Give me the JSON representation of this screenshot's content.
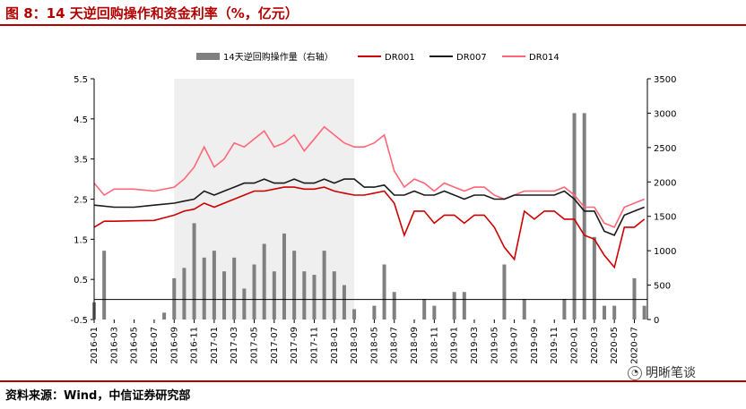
{
  "header": {
    "title": "图 8：14 天逆回购操作和资金利率（%，亿元）"
  },
  "footer": {
    "source": "资料来源：Wind，中信证券研究部",
    "watermark": "明晰笔谈"
  },
  "colors": {
    "accent": "#b30000",
    "bars": "#808080",
    "dr001": "#cc0000",
    "dr007": "#1a1a1a",
    "dr014": "#ff6677",
    "shade": "#efefef"
  },
  "chart_data": {
    "type": "line",
    "legend_position": "top",
    "x_ticks": [
      "2016-01",
      "2016-03",
      "2016-05",
      "2016-07",
      "2016-09",
      "2016-11",
      "2017-01",
      "2017-03",
      "2017-05",
      "2017-07",
      "2017-09",
      "2017-11",
      "2018-01",
      "2018-03",
      "2018-05",
      "2018-07",
      "2018-09",
      "2018-11",
      "2019-01",
      "2019-03",
      "2019-05",
      "2019-07",
      "2019-09",
      "2019-11",
      "2020-01",
      "2020-03",
      "2020-05",
      "2020-07"
    ],
    "y_left": {
      "ticks": [
        "5.5",
        "4.5",
        "3.5",
        "2.5",
        "1.5",
        "0.5",
        "-0.5"
      ],
      "lim": [
        -0.5,
        5.5
      ]
    },
    "y_right": {
      "ticks": [
        "3500",
        "3000",
        "2500",
        "2000",
        "1500",
        "1000",
        "500",
        "0"
      ],
      "lim": [
        0,
        3500
      ]
    },
    "shaded_range": [
      "2016-09",
      "2018-03"
    ],
    "series": [
      {
        "name": "14天逆回购操作量（右轴）",
        "kind": "bar",
        "axis": "right",
        "points": [
          [
            "2016-01",
            250
          ],
          [
            "2016-02",
            1000
          ],
          [
            "2016-08",
            100
          ],
          [
            "2016-09",
            600
          ],
          [
            "2016-10",
            750
          ],
          [
            "2016-11",
            1400
          ],
          [
            "2016-12",
            900
          ],
          [
            "2017-01",
            1000
          ],
          [
            "2017-02",
            700
          ],
          [
            "2017-03",
            900
          ],
          [
            "2017-04",
            450
          ],
          [
            "2017-05",
            800
          ],
          [
            "2017-06",
            1100
          ],
          [
            "2017-07",
            700
          ],
          [
            "2017-08",
            1250
          ],
          [
            "2017-09",
            1000
          ],
          [
            "2017-10",
            700
          ],
          [
            "2017-11",
            650
          ],
          [
            "2017-12",
            1000
          ],
          [
            "2018-01",
            700
          ],
          [
            "2018-02",
            500
          ],
          [
            "2018-03",
            150
          ],
          [
            "2018-05",
            200
          ],
          [
            "2018-06",
            800
          ],
          [
            "2018-07",
            400
          ],
          [
            "2018-10",
            300
          ],
          [
            "2018-11",
            200
          ],
          [
            "2019-01",
            400
          ],
          [
            "2019-02",
            400
          ],
          [
            "2019-06",
            800
          ],
          [
            "2019-08",
            300
          ],
          [
            "2019-12",
            300
          ],
          [
            "2020-01",
            3000
          ],
          [
            "2020-02",
            3000
          ],
          [
            "2020-03",
            1200
          ],
          [
            "2020-04",
            200
          ],
          [
            "2020-05",
            200
          ],
          [
            "2020-07",
            600
          ],
          [
            "2020-08",
            200
          ]
        ]
      },
      {
        "name": "DR001",
        "kind": "line",
        "axis": "left",
        "points": [
          [
            "2016-01",
            1.8
          ],
          [
            "2016-02",
            1.95
          ],
          [
            "2016-03",
            1.95
          ],
          [
            "2016-05",
            1.96
          ],
          [
            "2016-07",
            1.97
          ],
          [
            "2016-09",
            2.1
          ],
          [
            "2016-10",
            2.2
          ],
          [
            "2016-11",
            2.25
          ],
          [
            "2016-12",
            2.4
          ],
          [
            "2017-01",
            2.3
          ],
          [
            "2017-02",
            2.4
          ],
          [
            "2017-03",
            2.5
          ],
          [
            "2017-04",
            2.6
          ],
          [
            "2017-05",
            2.7
          ],
          [
            "2017-06",
            2.7
          ],
          [
            "2017-07",
            2.75
          ],
          [
            "2017-08",
            2.8
          ],
          [
            "2017-09",
            2.8
          ],
          [
            "2017-10",
            2.75
          ],
          [
            "2017-11",
            2.75
          ],
          [
            "2017-12",
            2.8
          ],
          [
            "2018-01",
            2.7
          ],
          [
            "2018-02",
            2.65
          ],
          [
            "2018-03",
            2.6
          ],
          [
            "2018-04",
            2.6
          ],
          [
            "2018-05",
            2.65
          ],
          [
            "2018-06",
            2.7
          ],
          [
            "2018-07",
            2.4
          ],
          [
            "2018-08",
            1.6
          ],
          [
            "2018-09",
            2.2
          ],
          [
            "2018-10",
            2.2
          ],
          [
            "2018-11",
            1.9
          ],
          [
            "2018-12",
            2.1
          ],
          [
            "2019-01",
            2.1
          ],
          [
            "2019-02",
            1.9
          ],
          [
            "2019-03",
            2.1
          ],
          [
            "2019-04",
            2.1
          ],
          [
            "2019-05",
            1.8
          ],
          [
            "2019-06",
            1.3
          ],
          [
            "2019-07",
            1.0
          ],
          [
            "2019-08",
            2.2
          ],
          [
            "2019-09",
            2.0
          ],
          [
            "2019-10",
            2.2
          ],
          [
            "2019-11",
            2.2
          ],
          [
            "2019-12",
            2.0
          ],
          [
            "2020-01",
            2.0
          ],
          [
            "2020-02",
            1.6
          ],
          [
            "2020-03",
            1.5
          ],
          [
            "2020-04",
            1.1
          ],
          [
            "2020-05",
            0.8
          ],
          [
            "2020-06",
            1.8
          ],
          [
            "2020-07",
            1.8
          ],
          [
            "2020-08",
            2.0
          ]
        ]
      },
      {
        "name": "DR007",
        "kind": "line",
        "axis": "left",
        "points": [
          [
            "2016-01",
            2.35
          ],
          [
            "2016-03",
            2.3
          ],
          [
            "2016-05",
            2.3
          ],
          [
            "2016-07",
            2.35
          ],
          [
            "2016-09",
            2.4
          ],
          [
            "2016-10",
            2.45
          ],
          [
            "2016-11",
            2.5
          ],
          [
            "2016-12",
            2.7
          ],
          [
            "2017-01",
            2.6
          ],
          [
            "2017-02",
            2.7
          ],
          [
            "2017-03",
            2.8
          ],
          [
            "2017-04",
            2.9
          ],
          [
            "2017-05",
            2.9
          ],
          [
            "2017-06",
            3.0
          ],
          [
            "2017-07",
            2.9
          ],
          [
            "2017-08",
            2.9
          ],
          [
            "2017-09",
            3.0
          ],
          [
            "2017-10",
            2.9
          ],
          [
            "2017-11",
            2.9
          ],
          [
            "2017-12",
            3.0
          ],
          [
            "2018-01",
            2.9
          ],
          [
            "2018-02",
            3.0
          ],
          [
            "2018-03",
            3.0
          ],
          [
            "2018-04",
            2.8
          ],
          [
            "2018-05",
            2.8
          ],
          [
            "2018-06",
            2.85
          ],
          [
            "2018-07",
            2.6
          ],
          [
            "2018-08",
            2.6
          ],
          [
            "2018-09",
            2.7
          ],
          [
            "2018-10",
            2.6
          ],
          [
            "2018-11",
            2.6
          ],
          [
            "2018-12",
            2.7
          ],
          [
            "2019-01",
            2.6
          ],
          [
            "2019-02",
            2.5
          ],
          [
            "2019-03",
            2.6
          ],
          [
            "2019-04",
            2.6
          ],
          [
            "2019-05",
            2.5
          ],
          [
            "2019-06",
            2.5
          ],
          [
            "2019-07",
            2.6
          ],
          [
            "2019-08",
            2.6
          ],
          [
            "2019-09",
            2.6
          ],
          [
            "2019-10",
            2.6
          ],
          [
            "2019-11",
            2.6
          ],
          [
            "2019-12",
            2.7
          ],
          [
            "2020-01",
            2.5
          ],
          [
            "2020-02",
            2.2
          ],
          [
            "2020-03",
            2.2
          ],
          [
            "2020-04",
            1.7
          ],
          [
            "2020-05",
            1.6
          ],
          [
            "2020-06",
            2.1
          ],
          [
            "2020-07",
            2.2
          ],
          [
            "2020-08",
            2.3
          ]
        ]
      },
      {
        "name": "DR014",
        "kind": "line",
        "axis": "left",
        "points": [
          [
            "2016-01",
            2.9
          ],
          [
            "2016-02",
            2.6
          ],
          [
            "2016-03",
            2.75
          ],
          [
            "2016-05",
            2.75
          ],
          [
            "2016-07",
            2.7
          ],
          [
            "2016-09",
            2.8
          ],
          [
            "2016-10",
            3.0
          ],
          [
            "2016-11",
            3.3
          ],
          [
            "2016-12",
            3.8
          ],
          [
            "2017-01",
            3.3
          ],
          [
            "2017-02",
            3.5
          ],
          [
            "2017-03",
            3.9
          ],
          [
            "2017-04",
            3.8
          ],
          [
            "2017-05",
            4.0
          ],
          [
            "2017-06",
            4.2
          ],
          [
            "2017-07",
            3.8
          ],
          [
            "2017-08",
            3.9
          ],
          [
            "2017-09",
            4.1
          ],
          [
            "2017-10",
            3.7
          ],
          [
            "2017-11",
            4.0
          ],
          [
            "2017-12",
            4.3
          ],
          [
            "2018-01",
            4.1
          ],
          [
            "2018-02",
            3.9
          ],
          [
            "2018-03",
            3.8
          ],
          [
            "2018-04",
            3.8
          ],
          [
            "2018-05",
            3.9
          ],
          [
            "2018-06",
            4.1
          ],
          [
            "2018-07",
            3.2
          ],
          [
            "2018-08",
            2.8
          ],
          [
            "2018-09",
            3.0
          ],
          [
            "2018-10",
            2.9
          ],
          [
            "2018-11",
            2.7
          ],
          [
            "2018-12",
            2.9
          ],
          [
            "2019-01",
            2.8
          ],
          [
            "2019-02",
            2.7
          ],
          [
            "2019-03",
            2.8
          ],
          [
            "2019-04",
            2.8
          ],
          [
            "2019-05",
            2.6
          ],
          [
            "2019-06",
            2.5
          ],
          [
            "2019-07",
            2.6
          ],
          [
            "2019-08",
            2.7
          ],
          [
            "2019-09",
            2.7
          ],
          [
            "2019-10",
            2.7
          ],
          [
            "2019-11",
            2.7
          ],
          [
            "2019-12",
            2.8
          ],
          [
            "2020-01",
            2.6
          ],
          [
            "2020-02",
            2.3
          ],
          [
            "2020-03",
            2.3
          ],
          [
            "2020-04",
            1.9
          ],
          [
            "2020-05",
            1.8
          ],
          [
            "2020-06",
            2.3
          ],
          [
            "2020-07",
            2.4
          ],
          [
            "2020-08",
            2.5
          ]
        ]
      }
    ]
  }
}
